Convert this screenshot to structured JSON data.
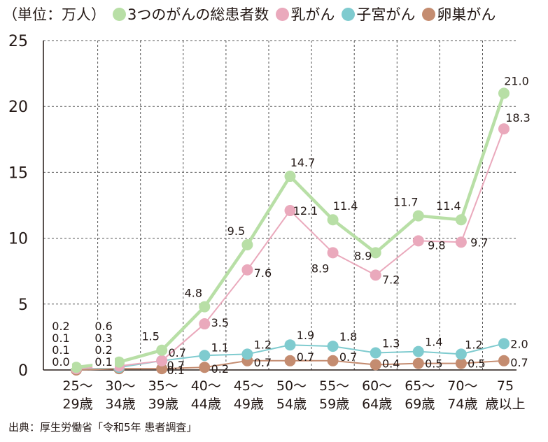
{
  "header": {
    "unit": "（単位：万人）"
  },
  "source": "出典：厚生労働省「令和5年 患者調査」",
  "chart_data": {
    "type": "line",
    "categories": [
      [
        "25～",
        "29歳"
      ],
      [
        "30～",
        "34歳"
      ],
      [
        "35～",
        "39歳"
      ],
      [
        "40～",
        "44歳"
      ],
      [
        "45～",
        "49歳"
      ],
      [
        "50～",
        "54歳"
      ],
      [
        "55～",
        "59歳"
      ],
      [
        "60～",
        "64歳"
      ],
      [
        "65～",
        "69歳"
      ],
      [
        "70～",
        "74歳"
      ],
      [
        "75",
        "歳以上"
      ]
    ],
    "ylim": [
      0,
      25
    ],
    "yticks": [
      "0",
      "5",
      "10",
      "15",
      "20",
      "25"
    ],
    "grid": true,
    "legend": "top",
    "series": [
      {
        "name": "3つのがんの総患者数",
        "color": "#b8dfa6",
        "values": [
          0.2,
          0.6,
          1.5,
          4.8,
          9.5,
          14.7,
          11.4,
          8.9,
          11.7,
          11.4,
          21.0
        ],
        "labels": [
          "0.2",
          "0.6",
          "1.5",
          "4.8",
          "9.5",
          "14.7",
          "11.4",
          "8.9",
          "11.7",
          "11.4",
          "21.0"
        ]
      },
      {
        "name": "乳がん",
        "color": "#eaa9bc",
        "values": [
          0.1,
          0.3,
          0.7,
          3.5,
          7.6,
          12.1,
          8.9,
          7.2,
          9.8,
          9.7,
          18.3
        ],
        "labels": [
          "0.1",
          "0.3",
          "0.7",
          "3.5",
          "7.6",
          "12.1",
          "8.9",
          "7.2",
          "9.8",
          "9.7",
          "18.3"
        ]
      },
      {
        "name": "子宮がん",
        "color": "#7fcbcf",
        "values": [
          0.1,
          0.2,
          0.7,
          1.1,
          1.2,
          1.9,
          1.8,
          1.3,
          1.4,
          1.2,
          2.0
        ],
        "labels": [
          "0.1",
          "0.2",
          "0.7",
          "1.1",
          "1.2",
          "1.9",
          "1.8",
          "1.3",
          "1.4",
          "1.2",
          "2.0"
        ]
      },
      {
        "name": "卵巣がん",
        "color": "#c48c70",
        "values": [
          0.0,
          0.1,
          0.1,
          0.2,
          0.7,
          0.7,
          0.7,
          0.4,
          0.5,
          0.5,
          0.7
        ],
        "labels": [
          "0.0",
          "0.1",
          "0.1",
          "0.2",
          "0.7",
          "0.7",
          "0.7",
          "0.4",
          "0.5",
          "0.5",
          "0.7"
        ]
      }
    ]
  }
}
